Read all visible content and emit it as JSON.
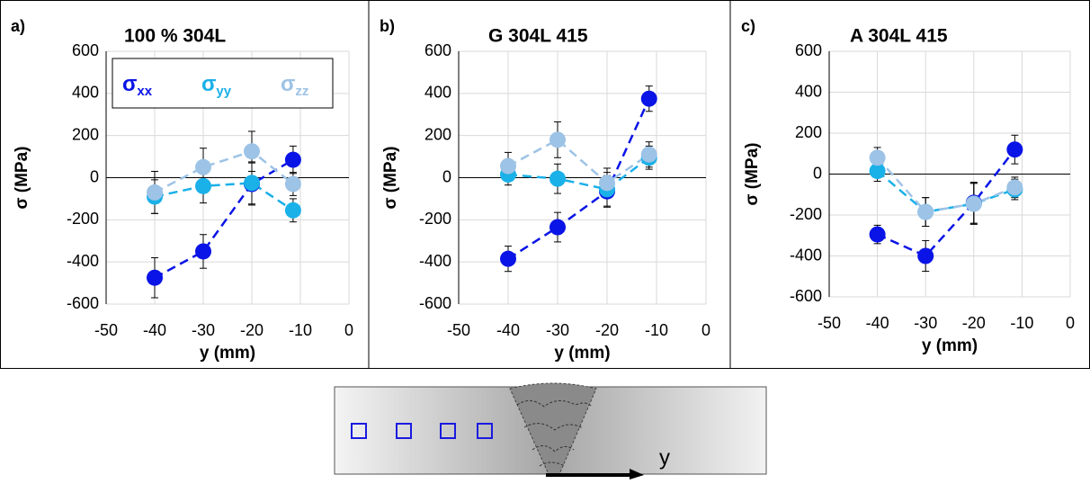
{
  "chart_data": [
    {
      "type": "line",
      "panel_label": "a)",
      "title": "100 % 304L",
      "x_label": "y (mm)",
      "y_label": "σ (MPa)",
      "x": [
        -40,
        -30,
        -20,
        -11.5
      ],
      "xlim": [
        -50,
        0
      ],
      "xticks": [
        -50,
        -40,
        -30,
        -20,
        -10,
        0
      ],
      "ylim": [
        -600,
        600
      ],
      "yticks": [
        -600,
        -400,
        -200,
        0,
        200,
        400,
        600
      ],
      "grid": true,
      "legend": "top",
      "series": [
        {
          "name": "σxx",
          "color": "#0a14e6",
          "values": [
            -475,
            -350,
            -30,
            85
          ],
          "errors": [
            95,
            80,
            100,
            65
          ]
        },
        {
          "name": "σyy",
          "color": "#1ab0e8",
          "values": [
            -90,
            -40,
            -25,
            -155
          ],
          "errors": [
            80,
            80,
            100,
            55
          ]
        },
        {
          "name": "σzz",
          "color": "#9dc3e6",
          "values": [
            -70,
            50,
            125,
            -30
          ],
          "errors": [
            100,
            90,
            95,
            55
          ]
        }
      ]
    },
    {
      "type": "line",
      "panel_label": "b)",
      "title": "G 304L 415",
      "x_label": "y (mm)",
      "y_label": "σ (MPa)",
      "x": [
        -40,
        -30,
        -20,
        -11.5
      ],
      "xlim": [
        -50,
        0
      ],
      "xticks": [
        -50,
        -40,
        -30,
        -20,
        -10,
        0
      ],
      "ylim": [
        -600,
        600
      ],
      "yticks": [
        -600,
        -400,
        -200,
        0,
        200,
        400,
        600
      ],
      "grid": true,
      "series": [
        {
          "name": "σxx",
          "color": "#0a14e6",
          "values": [
            -385,
            -235,
            -65,
            375
          ],
          "errors": [
            60,
            70,
            75,
            60
          ]
        },
        {
          "name": "σyy",
          "color": "#1ab0e8",
          "values": [
            15,
            -5,
            -55,
            95
          ],
          "errors": [
            50,
            70,
            80,
            55
          ]
        },
        {
          "name": "σzz",
          "color": "#9dc3e6",
          "values": [
            55,
            180,
            -25,
            110
          ],
          "errors": [
            65,
            85,
            70,
            60
          ]
        }
      ]
    },
    {
      "type": "line",
      "panel_label": "c)",
      "title": "A 304L 415",
      "x_label": "y (mm)",
      "y_label": "σ (MPa)",
      "x": [
        -40,
        -30,
        -20,
        -11.5
      ],
      "xlim": [
        -50,
        0
      ],
      "xticks": [
        -50,
        -40,
        -30,
        -20,
        -10,
        0
      ],
      "ylim": [
        -600,
        600
      ],
      "yticks": [
        -600,
        -400,
        -200,
        0,
        200,
        400,
        600
      ],
      "grid": true,
      "series": [
        {
          "name": "σxx",
          "color": "#0a14e6",
          "values": [
            -295,
            -400,
            -140,
            120
          ],
          "errors": [
            45,
            75,
            100,
            70
          ]
        },
        {
          "name": "σyy",
          "color": "#1ab0e8",
          "values": [
            15,
            -185,
            -145,
            -75
          ],
          "errors": [
            50,
            70,
            100,
            50
          ]
        },
        {
          "name": "σzz",
          "color": "#9dc3e6",
          "values": [
            80,
            -185,
            -145,
            -65
          ],
          "errors": [
            50,
            70,
            100,
            50
          ]
        }
      ]
    }
  ],
  "diagram": {
    "axis_label": "y"
  }
}
